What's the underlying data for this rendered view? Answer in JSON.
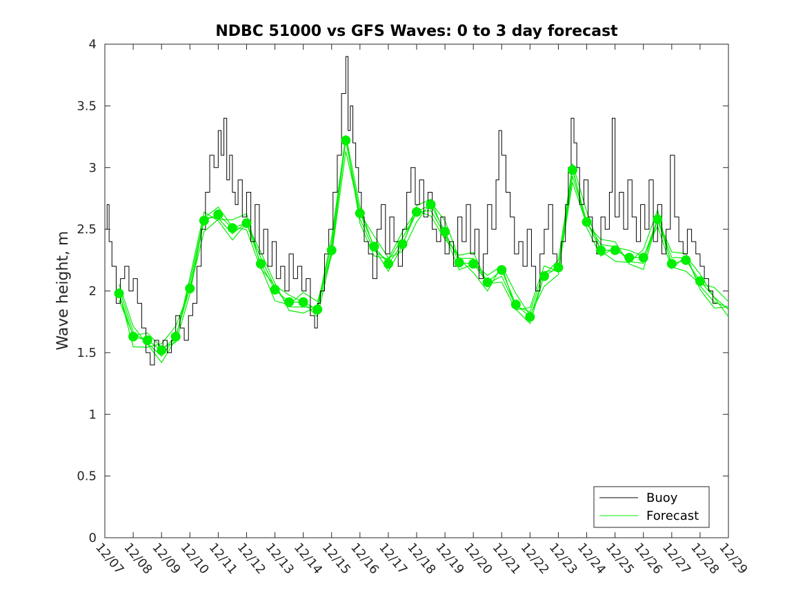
{
  "chart_data": {
    "type": "line",
    "title": "NDBC 51000 vs GFS Waves: 0 to 3 day forecast",
    "xlabel": "",
    "ylabel": "Wave height, m",
    "xlim": [
      0,
      22
    ],
    "ylim": [
      0,
      4
    ],
    "x_ticks": [
      0,
      1,
      2,
      3,
      4,
      5,
      6,
      7,
      8,
      9,
      10,
      11,
      12,
      13,
      14,
      15,
      16,
      17,
      18,
      19,
      20,
      21,
      22
    ],
    "x_tick_labels": [
      "12/07",
      "12/08",
      "12/09",
      "12/10",
      "12/11",
      "12/12",
      "12/13",
      "12/14",
      "12/15",
      "12/16",
      "12/17",
      "12/18",
      "12/19",
      "12/20",
      "12/21",
      "12/22",
      "12/23",
      "12/24",
      "12/25",
      "12/26",
      "12/27",
      "12/28",
      "12/29"
    ],
    "y_ticks": [
      0,
      0.5,
      1,
      1.5,
      2,
      2.5,
      3,
      3.5,
      4
    ],
    "y_tick_labels": [
      "0",
      "0.5",
      "1",
      "1.5",
      "2",
      "2.5",
      "3",
      "3.5",
      "4"
    ],
    "grid": false,
    "legend": {
      "position": "bottom-right",
      "entries": [
        {
          "label": "Buoy",
          "color": "#000000"
        },
        {
          "label": "Forecast",
          "color": "#00ee00"
        }
      ]
    },
    "series": [
      {
        "name": "Buoy",
        "color": "#000000",
        "x": [
          0,
          0.08,
          0.15,
          0.25,
          0.4,
          0.55,
          0.7,
          0.85,
          1,
          1.15,
          1.3,
          1.45,
          1.6,
          1.75,
          1.9,
          2.05,
          2.2,
          2.35,
          2.5,
          2.65,
          2.8,
          2.95,
          3.1,
          3.25,
          3.4,
          3.55,
          3.7,
          3.85,
          4,
          4.1,
          4.2,
          4.3,
          4.4,
          4.5,
          4.6,
          4.7,
          4.85,
          5,
          5.15,
          5.3,
          5.45,
          5.6,
          5.75,
          5.9,
          6.05,
          6.2,
          6.35,
          6.5,
          6.65,
          6.8,
          6.95,
          7.1,
          7.25,
          7.4,
          7.5,
          7.6,
          7.75,
          7.9,
          8.05,
          8.2,
          8.35,
          8.5,
          8.58,
          8.66,
          8.75,
          8.85,
          8.95,
          9.05,
          9.15,
          9.3,
          9.45,
          9.6,
          9.75,
          9.9,
          10.05,
          10.2,
          10.35,
          10.5,
          10.65,
          10.8,
          10.95,
          11.1,
          11.25,
          11.4,
          11.55,
          11.7,
          11.85,
          12,
          12.15,
          12.3,
          12.45,
          12.6,
          12.75,
          12.9,
          13.05,
          13.2,
          13.35,
          13.5,
          13.65,
          13.8,
          13.9,
          14,
          14.15,
          14.3,
          14.45,
          14.6,
          14.75,
          14.9,
          15.05,
          15.2,
          15.35,
          15.5,
          15.65,
          15.8,
          15.95,
          16.1,
          16.25,
          16.35,
          16.45,
          16.55,
          16.65,
          16.75,
          16.9,
          17.05,
          17.2,
          17.35,
          17.5,
          17.65,
          17.8,
          17.9,
          18,
          18.15,
          18.3,
          18.45,
          18.6,
          18.75,
          18.9,
          19.05,
          19.2,
          19.35,
          19.5,
          19.65,
          19.8,
          19.95,
          20.1,
          20.25,
          20.4,
          20.55,
          20.7,
          20.85,
          21,
          21.15,
          21.3,
          21.45,
          21.6
        ],
        "y": [
          2.5,
          2.7,
          2.4,
          2.2,
          1.9,
          2.1,
          2.2,
          2.0,
          2.1,
          1.9,
          1.7,
          1.5,
          1.4,
          1.6,
          1.5,
          1.6,
          1.5,
          1.6,
          1.8,
          1.7,
          1.6,
          1.8,
          1.9,
          2.2,
          2.5,
          2.8,
          3.1,
          3.0,
          3.3,
          3.1,
          3.4,
          2.9,
          3.1,
          2.8,
          2.7,
          2.9,
          2.6,
          2.8,
          2.4,
          2.7,
          2.3,
          2.5,
          2.2,
          2.4,
          2.1,
          2.2,
          2.0,
          2.3,
          2.1,
          2.2,
          2.0,
          2.1,
          1.8,
          1.7,
          1.9,
          2.0,
          2.3,
          2.5,
          2.8,
          3.1,
          3.6,
          3.9,
          3.3,
          3.5,
          3.2,
          3.0,
          2.8,
          2.6,
          2.4,
          2.3,
          2.1,
          2.5,
          2.7,
          2.3,
          2.6,
          2.4,
          2.2,
          2.5,
          2.8,
          3.0,
          2.7,
          2.9,
          2.6,
          2.8,
          2.5,
          2.4,
          2.6,
          2.3,
          2.4,
          2.2,
          2.6,
          2.4,
          2.7,
          2.3,
          2.5,
          2.1,
          2.3,
          2.7,
          2.5,
          2.9,
          3.3,
          3.1,
          2.8,
          2.6,
          2.3,
          2.4,
          2.2,
          2.5,
          2.2,
          2.0,
          2.3,
          2.5,
          2.7,
          2.3,
          2.2,
          2.4,
          2.7,
          3.0,
          3.4,
          3.2,
          3.0,
          2.7,
          2.9,
          2.6,
          2.4,
          2.3,
          2.6,
          2.5,
          2.8,
          3.4,
          2.6,
          2.8,
          2.5,
          2.9,
          2.6,
          2.4,
          2.7,
          2.5,
          2.9,
          2.4,
          2.7,
          2.3,
          2.5,
          3.1,
          2.6,
          2.4,
          2.3,
          2.5,
          2.4,
          2.3,
          2.2,
          2.1,
          2.0,
          1.9,
          1.9
        ]
      },
      {
        "name": "Forecast",
        "color": "#00ee00",
        "x": [
          0.5,
          1,
          1.5,
          2,
          2.5,
          3,
          3.5,
          4,
          4.5,
          5,
          5.5,
          6,
          6.5,
          7,
          7.5,
          8,
          8.5,
          9,
          9.5,
          10,
          10.5,
          11,
          11.5,
          12,
          12.5,
          13,
          13.5,
          14,
          14.5,
          15,
          15.5,
          16,
          16.5,
          17,
          17.5,
          18,
          18.5,
          19,
          19.5,
          20,
          20.5,
          21,
          21.5,
          22
        ],
        "y": [
          1.98,
          1.63,
          1.6,
          1.52,
          1.63,
          2.02,
          2.57,
          2.62,
          2.51,
          2.55,
          2.22,
          2.01,
          1.91,
          1.91,
          1.85,
          2.33,
          3.22,
          2.63,
          2.36,
          2.22,
          2.38,
          2.64,
          2.7,
          2.48,
          2.23,
          2.22,
          2.07,
          2.17,
          1.89,
          1.79,
          2.12,
          2.19,
          2.98,
          2.56,
          2.33,
          2.33,
          2.27,
          2.27,
          2.58,
          2.22,
          2.25,
          2.08,
          1.95,
          1.85
        ]
      }
    ]
  }
}
